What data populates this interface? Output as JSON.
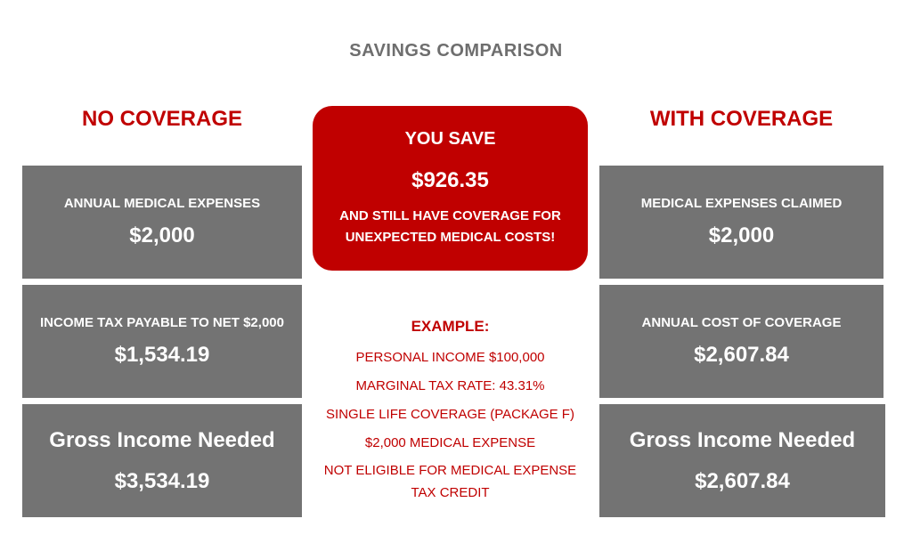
{
  "title": "SAVINGS COMPARISON",
  "no_coverage": {
    "heading": "NO COVERAGE",
    "annual_label": "ANNUAL MEDICAL EXPENSES",
    "annual_value": "$2,000",
    "tax_label": "INCOME TAX PAYABLE TO NET $2,000",
    "tax_value": "$1,534.19",
    "gross_label": "Gross Income Needed",
    "gross_value": "$3,534.19"
  },
  "with_coverage": {
    "heading": "WITH COVERAGE",
    "claimed_label": "MEDICAL EXPENSES CLAIMED",
    "claimed_value": "$2,000",
    "cost_label": "ANNUAL COST OF COVERAGE",
    "cost_value": "$2,607.84",
    "gross_label": "Gross Income Needed",
    "gross_value": "$2,607.84"
  },
  "savings": {
    "heading": "YOU SAVE",
    "amount": "$926.35",
    "line1": "AND STILL HAVE COVERAGE FOR",
    "line2": "UNEXPECTED MEDICAL COSTS!"
  },
  "example": {
    "title": "EXAMPLE:",
    "items": [
      "PERSONAL INCOME $100,000",
      "MARGINAL TAX RATE: 43.31%",
      "SINGLE LIFE COVERAGE (PACKAGE F)",
      "$2,000 MEDICAL EXPENSE",
      "NOT ELIGIBLE FOR MEDICAL EXPENSE",
      "TAX CREDIT"
    ]
  },
  "colors": {
    "accent_red": "#c00000",
    "box_gray": "#737373",
    "title_gray": "#6e6e6e"
  }
}
